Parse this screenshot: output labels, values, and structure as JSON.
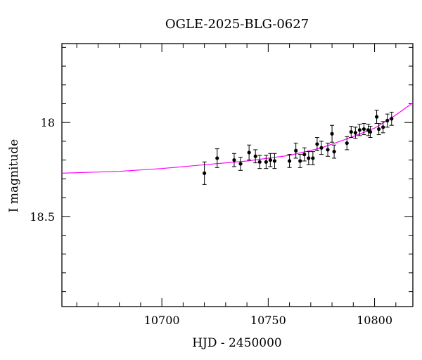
{
  "chart_data": {
    "type": "scatter",
    "title": "OGLE-2025-BLG-0627",
    "xlabel": "HJD - 2450000",
    "ylabel": "I magnitude",
    "xlim": [
      10653,
      10818
    ],
    "ylim": [
      18.98,
      17.58
    ],
    "y_inverted": true,
    "x_ticks": [
      10700,
      10750,
      10800
    ],
    "x_tick_labels": [
      "10700",
      "10750",
      "10800"
    ],
    "y_ticks": [
      18,
      18.5
    ],
    "y_tick_labels": [
      "18",
      "18.5"
    ],
    "grid": false,
    "legend": "none",
    "colors": {
      "points": "#000000",
      "model": "#ff00ff",
      "axes": "#000000"
    },
    "model": {
      "x": [
        10653,
        10680,
        10700,
        10720,
        10740,
        10760,
        10775,
        10790,
        10800,
        10810,
        10818
      ],
      "y": [
        18.27,
        18.26,
        18.245,
        18.225,
        18.205,
        18.175,
        18.135,
        18.075,
        18.03,
        17.96,
        17.895
      ]
    },
    "series": [
      {
        "values": [
          {
            "x": 10720,
            "y": 18.27,
            "err": 0.06
          },
          {
            "x": 10726,
            "y": 18.19,
            "err": 0.05
          },
          {
            "x": 10734,
            "y": 18.2,
            "err": 0.035
          },
          {
            "x": 10737,
            "y": 18.22,
            "err": 0.035
          },
          {
            "x": 10741,
            "y": 18.16,
            "err": 0.04
          },
          {
            "x": 10744,
            "y": 18.18,
            "err": 0.035
          },
          {
            "x": 10746,
            "y": 18.21,
            "err": 0.035
          },
          {
            "x": 10749,
            "y": 18.21,
            "err": 0.035
          },
          {
            "x": 10751,
            "y": 18.2,
            "err": 0.035
          },
          {
            "x": 10753,
            "y": 18.205,
            "err": 0.04
          },
          {
            "x": 10760,
            "y": 18.205,
            "err": 0.035
          },
          {
            "x": 10763,
            "y": 18.15,
            "err": 0.04
          },
          {
            "x": 10765,
            "y": 18.205,
            "err": 0.035
          },
          {
            "x": 10767,
            "y": 18.17,
            "err": 0.035
          },
          {
            "x": 10769,
            "y": 18.19,
            "err": 0.035
          },
          {
            "x": 10771,
            "y": 18.19,
            "err": 0.035
          },
          {
            "x": 10773,
            "y": 18.115,
            "err": 0.035
          },
          {
            "x": 10775,
            "y": 18.135,
            "err": 0.035
          },
          {
            "x": 10778,
            "y": 18.145,
            "err": 0.035
          },
          {
            "x": 10780,
            "y": 18.06,
            "err": 0.045
          },
          {
            "x": 10781,
            "y": 18.155,
            "err": 0.035
          },
          {
            "x": 10787,
            "y": 18.11,
            "err": 0.035
          },
          {
            "x": 10789,
            "y": 18.05,
            "err": 0.03
          },
          {
            "x": 10791,
            "y": 18.055,
            "err": 0.03
          },
          {
            "x": 10793,
            "y": 18.04,
            "err": 0.03
          },
          {
            "x": 10795,
            "y": 18.035,
            "err": 0.03
          },
          {
            "x": 10797,
            "y": 18.04,
            "err": 0.03
          },
          {
            "x": 10798,
            "y": 18.05,
            "err": 0.03
          },
          {
            "x": 10801,
            "y": 17.97,
            "err": 0.035
          },
          {
            "x": 10802,
            "y": 18.035,
            "err": 0.03
          },
          {
            "x": 10804,
            "y": 18.025,
            "err": 0.03
          },
          {
            "x": 10806,
            "y": 17.99,
            "err": 0.035
          },
          {
            "x": 10808,
            "y": 17.98,
            "err": 0.035
          }
        ]
      }
    ]
  }
}
